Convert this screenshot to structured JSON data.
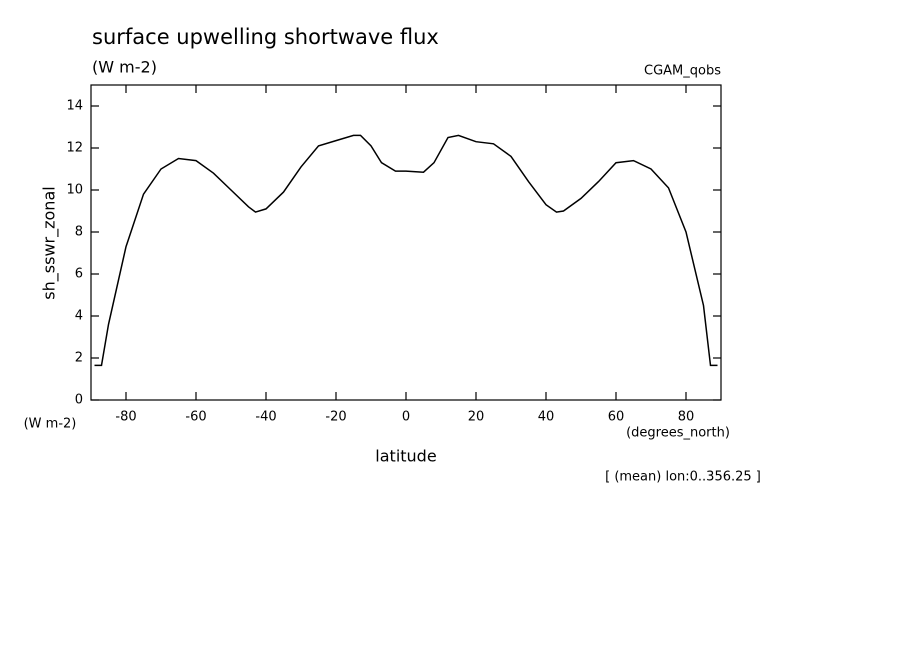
{
  "chart_data": {
    "type": "line",
    "title": "surface upwelling shortwave flux",
    "subtitle": "(W m-2)",
    "dataset": "CGAM_qobs",
    "y_label": "sh_sswr_zonal",
    "y_units": "(W m-2)",
    "x_label": "latitude",
    "x_units": "(degrees_north)",
    "note": "[ (mean) lon:0..356.25 ]",
    "color": "#000000",
    "xlim": [
      -90,
      90
    ],
    "ylim": [
      0,
      15
    ],
    "xticks": [
      -80,
      -60,
      -40,
      -20,
      0,
      20,
      40,
      60,
      80
    ],
    "yticks": [
      0,
      2,
      4,
      6,
      8,
      10,
      12,
      14
    ],
    "x": [
      -89,
      -87,
      -85,
      -80,
      -75,
      -70,
      -65,
      -60,
      -55,
      -50,
      -45,
      -43,
      -40,
      -35,
      -30,
      -25,
      -20,
      -15,
      -13,
      -10,
      -7,
      -3,
      0,
      5,
      8,
      12,
      15,
      20,
      25,
      30,
      35,
      40,
      43,
      45,
      50,
      55,
      60,
      65,
      70,
      75,
      80,
      85,
      87,
      89
    ],
    "values": [
      1.65,
      1.65,
      3.6,
      7.3,
      9.8,
      11.0,
      11.5,
      11.4,
      10.8,
      10.0,
      9.2,
      8.95,
      9.1,
      9.9,
      11.1,
      12.1,
      12.35,
      12.6,
      12.6,
      12.1,
      11.3,
      10.9,
      10.9,
      10.85,
      11.3,
      12.5,
      12.6,
      12.3,
      12.2,
      11.6,
      10.4,
      9.3,
      8.95,
      9.0,
      9.6,
      10.4,
      11.3,
      11.4,
      11.0,
      10.1,
      8.0,
      4.5,
      1.65,
      1.65
    ]
  }
}
